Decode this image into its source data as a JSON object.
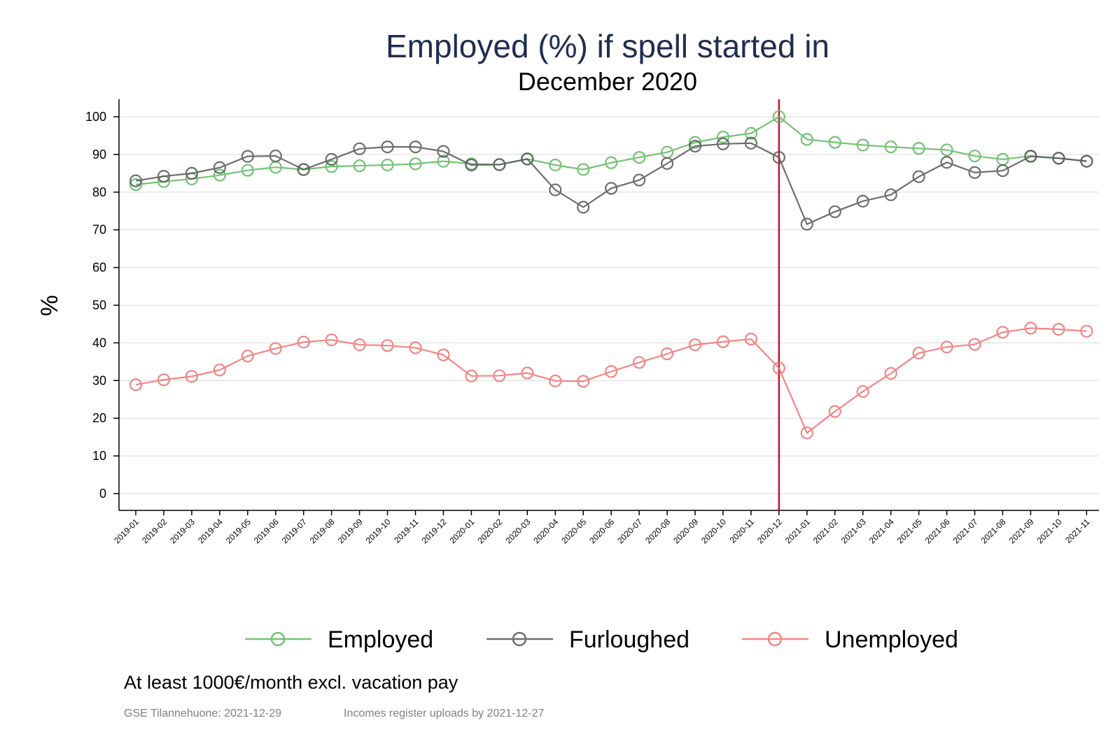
{
  "title": "Employed (%) if spell started in",
  "subtitle": "December 2020",
  "footnote": "At least 1000€/month excl. vacation pay",
  "source_left": "GSE Tilannehuone: 2021-12-29",
  "source_right": "Incomes register uploads by 2021-12-27",
  "chart_data": {
    "type": "line",
    "title": "Employed (%) if spell started in",
    "subtitle": "December 2020",
    "xlabel": "",
    "ylabel": "%",
    "ylim": [
      0,
      100
    ],
    "yticks": [
      0,
      10,
      20,
      30,
      40,
      50,
      60,
      70,
      80,
      90,
      100
    ],
    "grid": true,
    "legend_position": "bottom",
    "reference_line": {
      "x": "2020-12",
      "color": "#c8102e"
    },
    "categories": [
      "2019-01",
      "2019-02",
      "2019-03",
      "2019-04",
      "2019-05",
      "2019-06",
      "2019-07",
      "2019-08",
      "2019-09",
      "2019-10",
      "2019-11",
      "2019-12",
      "2020-01",
      "2020-02",
      "2020-03",
      "2020-04",
      "2020-05",
      "2020-06",
      "2020-07",
      "2020-08",
      "2020-09",
      "2020-10",
      "2020-11",
      "2020-12",
      "2021-01",
      "2021-02",
      "2021-03",
      "2021-04",
      "2021-05",
      "2021-06",
      "2021-07",
      "2021-08",
      "2021-09",
      "2021-10",
      "2021-11"
    ],
    "series": [
      {
        "name": "Employed",
        "color": "#5cb85c",
        "values": [
          82,
          82.8,
          83.5,
          84.5,
          85.8,
          86.6,
          86,
          86.8,
          87,
          87.2,
          87.5,
          88.2,
          87.5,
          87.3,
          88.8,
          87.2,
          86,
          87.8,
          89.2,
          90.6,
          93.2,
          94.6,
          95.6,
          100,
          94,
          93.2,
          92.5,
          92,
          91.6,
          91.2,
          89.6,
          88.7,
          89.6,
          89,
          88.2
        ]
      },
      {
        "name": "Furloughed",
        "color": "#555555",
        "values": [
          83,
          84.2,
          85,
          86.5,
          89.5,
          89.6,
          86,
          88.7,
          91.5,
          92,
          92,
          90.8,
          87.2,
          87.3,
          88.8,
          80.6,
          76,
          81,
          83.2,
          87.6,
          92.2,
          92.8,
          93,
          89.2,
          71.5,
          74.8,
          77.6,
          79.3,
          84.1,
          87.9,
          85.2,
          85.7,
          89.5,
          89,
          88.2
        ]
      },
      {
        "name": "Unemployed",
        "color": "#f27171",
        "values": [
          28.9,
          30.2,
          31.1,
          32.8,
          36.5,
          38.5,
          40.2,
          40.8,
          39.5,
          39.3,
          38.7,
          36.8,
          31.2,
          31.3,
          32,
          29.9,
          29.8,
          32.4,
          34.8,
          37.1,
          39.5,
          40.3,
          41,
          33.3,
          16.1,
          21.8,
          27.1,
          31.9,
          37.3,
          38.9,
          39.6,
          42.8,
          43.9,
          43.6,
          43.1
        ]
      }
    ]
  }
}
